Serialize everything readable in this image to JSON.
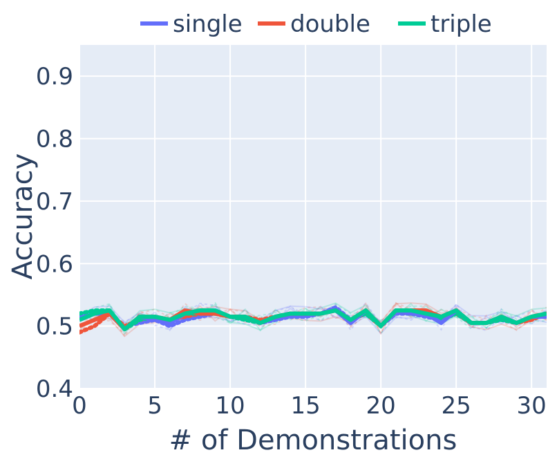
{
  "chart_data": {
    "type": "line",
    "xlabel": "# of Demonstrations",
    "ylabel": "Accuracy",
    "xlim": [
      0,
      31
    ],
    "ylim": [
      0.4,
      0.95
    ],
    "xticks": [
      0,
      5,
      10,
      15,
      20,
      25,
      30
    ],
    "yticks": [
      0.4,
      0.5,
      0.6,
      0.7,
      0.8,
      0.9
    ],
    "xtick_labels": [
      "0",
      "5",
      "10",
      "15",
      "20",
      "25",
      "30"
    ],
    "ytick_labels": [
      "0.4",
      "0.5",
      "0.6",
      "0.7",
      "0.8",
      "0.9"
    ],
    "grid": true,
    "legend_position": "top",
    "x": [
      0,
      1,
      2,
      3,
      4,
      5,
      6,
      7,
      8,
      9,
      10,
      11,
      12,
      13,
      14,
      15,
      16,
      17,
      18,
      19,
      20,
      21,
      22,
      23,
      24,
      25,
      26,
      27,
      28,
      29,
      30,
      31
    ],
    "series": [
      {
        "name": "single",
        "color": "#636efa",
        "values": [
          0.51,
          0.52,
          0.52,
          0.495,
          0.515,
          0.51,
          0.505,
          0.52,
          0.525,
          0.525,
          0.515,
          0.515,
          0.505,
          0.515,
          0.52,
          0.52,
          0.52,
          0.525,
          0.505,
          0.525,
          0.5,
          0.525,
          0.52,
          0.52,
          0.505,
          0.525,
          0.505,
          0.505,
          0.515,
          0.505,
          0.515,
          0.515
        ],
        "dotted_values": [
          0.515,
          0.52,
          0.52,
          0.5,
          0.505,
          0.51,
          0.5,
          0.51,
          0.515,
          0.52,
          0.515,
          0.51,
          0.505,
          0.51,
          0.515,
          0.515,
          0.52,
          0.53,
          0.51,
          0.52,
          0.5,
          0.52,
          0.52,
          0.515,
          0.51,
          0.52,
          0.505,
          0.505,
          0.51,
          0.505,
          0.515,
          0.515
        ]
      },
      {
        "name": "double",
        "color": "#ef553b",
        "values": [
          0.5,
          0.51,
          0.52,
          0.495,
          0.515,
          0.515,
          0.51,
          0.525,
          0.52,
          0.52,
          0.515,
          0.515,
          0.505,
          0.515,
          0.52,
          0.52,
          0.52,
          0.525,
          0.51,
          0.525,
          0.5,
          0.525,
          0.525,
          0.525,
          0.515,
          0.525,
          0.505,
          0.505,
          0.515,
          0.505,
          0.515,
          0.52
        ],
        "dotted_values": [
          0.49,
          0.5,
          0.52,
          0.5,
          0.51,
          0.515,
          0.51,
          0.515,
          0.52,
          0.52,
          0.515,
          0.515,
          0.51,
          0.515,
          0.52,
          0.52,
          0.52,
          0.525,
          0.51,
          0.52,
          0.5,
          0.525,
          0.52,
          0.52,
          0.515,
          0.52,
          0.505,
          0.505,
          0.515,
          0.505,
          0.51,
          0.52
        ]
      },
      {
        "name": "triple",
        "color": "#00cc96",
        "values": [
          0.51,
          0.52,
          0.525,
          0.495,
          0.515,
          0.515,
          0.51,
          0.52,
          0.525,
          0.525,
          0.515,
          0.515,
          0.505,
          0.515,
          0.52,
          0.52,
          0.52,
          0.525,
          0.51,
          0.525,
          0.5,
          0.525,
          0.525,
          0.52,
          0.515,
          0.525,
          0.505,
          0.505,
          0.515,
          0.505,
          0.515,
          0.52
        ],
        "dotted_values": [
          0.52,
          0.525,
          0.525,
          0.495,
          0.51,
          0.515,
          0.51,
          0.52,
          0.52,
          0.52,
          0.515,
          0.51,
          0.505,
          0.515,
          0.52,
          0.52,
          0.52,
          0.525,
          0.51,
          0.52,
          0.5,
          0.525,
          0.52,
          0.52,
          0.51,
          0.52,
          0.505,
          0.505,
          0.51,
          0.505,
          0.515,
          0.515
        ]
      }
    ]
  }
}
